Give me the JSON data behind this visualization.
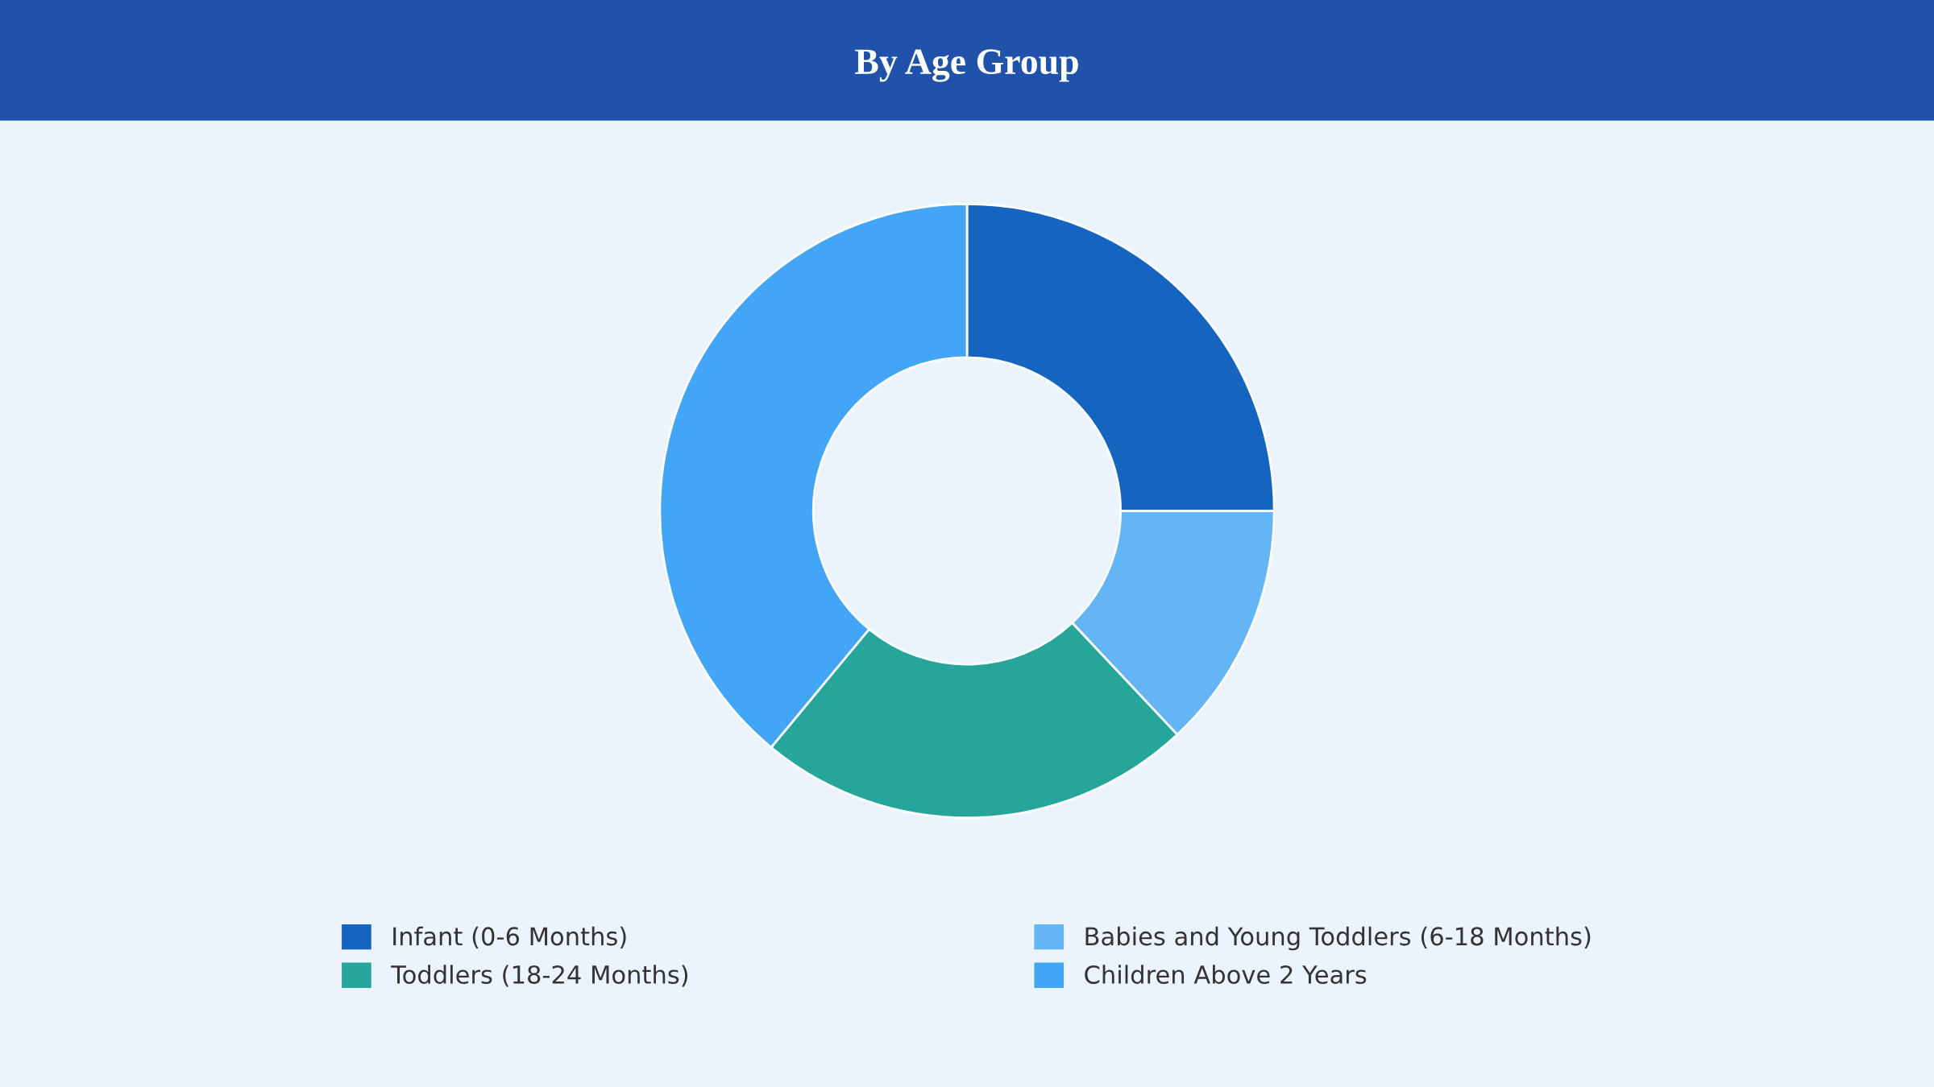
{
  "chart_data": {
    "type": "donut",
    "title": "By Age Group",
    "categories": [
      "Infant (0-6 Months)",
      "Babies and Young Toddlers (6-18 Months)",
      "Toddlers (18-24 Months)",
      "Children Above 2 Years"
    ],
    "values": [
      25,
      13,
      23,
      39
    ],
    "colors": [
      "#1565c0",
      "#64b5f6",
      "#26a69a",
      "#42a5f5"
    ],
    "legend": "bottom"
  }
}
